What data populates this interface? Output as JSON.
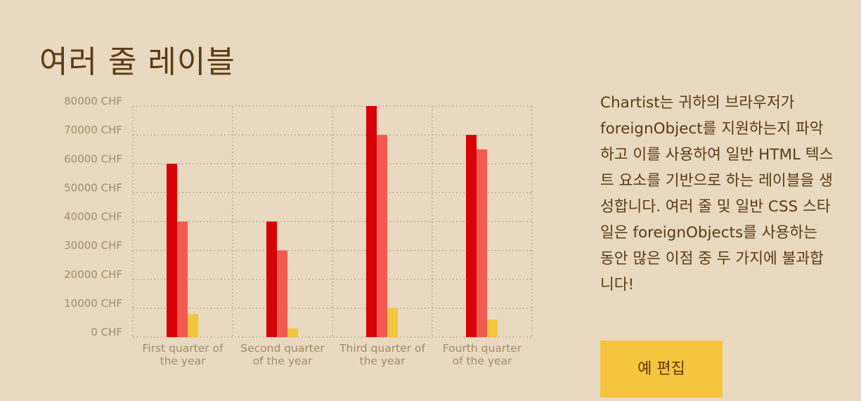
{
  "title": "여러 줄 레이블",
  "description": "Chartist는 귀하의 브라우저가 foreignObject를 지원하는지 파악하고 이를 사용하여 일반 HTML 텍스트 요소를 기반으로 하는 레이블을 생성합니다. 여러 줄 및 일반 CSS 스타일은 foreignObjects를 사용하는 동안 많은 이점 중 두 가지에 불과합니다!",
  "edit_button_label": "예 편집",
  "colors": {
    "background": "#e8d9c0",
    "series_a": "#d70206",
    "series_b": "#f05b4f",
    "series_c": "#f4c63d",
    "grid": "#a89b86",
    "text": "#5b3c14",
    "tick": "#a48b6a"
  },
  "chart_data": {
    "type": "bar",
    "categories": [
      "First quarter of the year",
      "Second quarter of the year",
      "Third quarter of the year",
      "Fourth quarter of the year"
    ],
    "series": [
      {
        "values": [
          60000,
          40000,
          80000,
          70000
        ]
      },
      {
        "values": [
          40000,
          30000,
          70000,
          65000
        ]
      },
      {
        "values": [
          8000,
          3000,
          10000,
          6000
        ]
      }
    ],
    "y_ticks": [
      0,
      10000,
      20000,
      30000,
      40000,
      50000,
      60000,
      70000,
      80000
    ],
    "y_tick_labels": [
      "0 CHF",
      "10000 CHF",
      "20000 CHF",
      "30000 CHF",
      "40000 CHF",
      "50000 CHF",
      "60000 CHF",
      "70000 CHF",
      "80000 CHF"
    ],
    "ylim": [
      0,
      80000
    ],
    "grid": true,
    "legend": "none"
  }
}
